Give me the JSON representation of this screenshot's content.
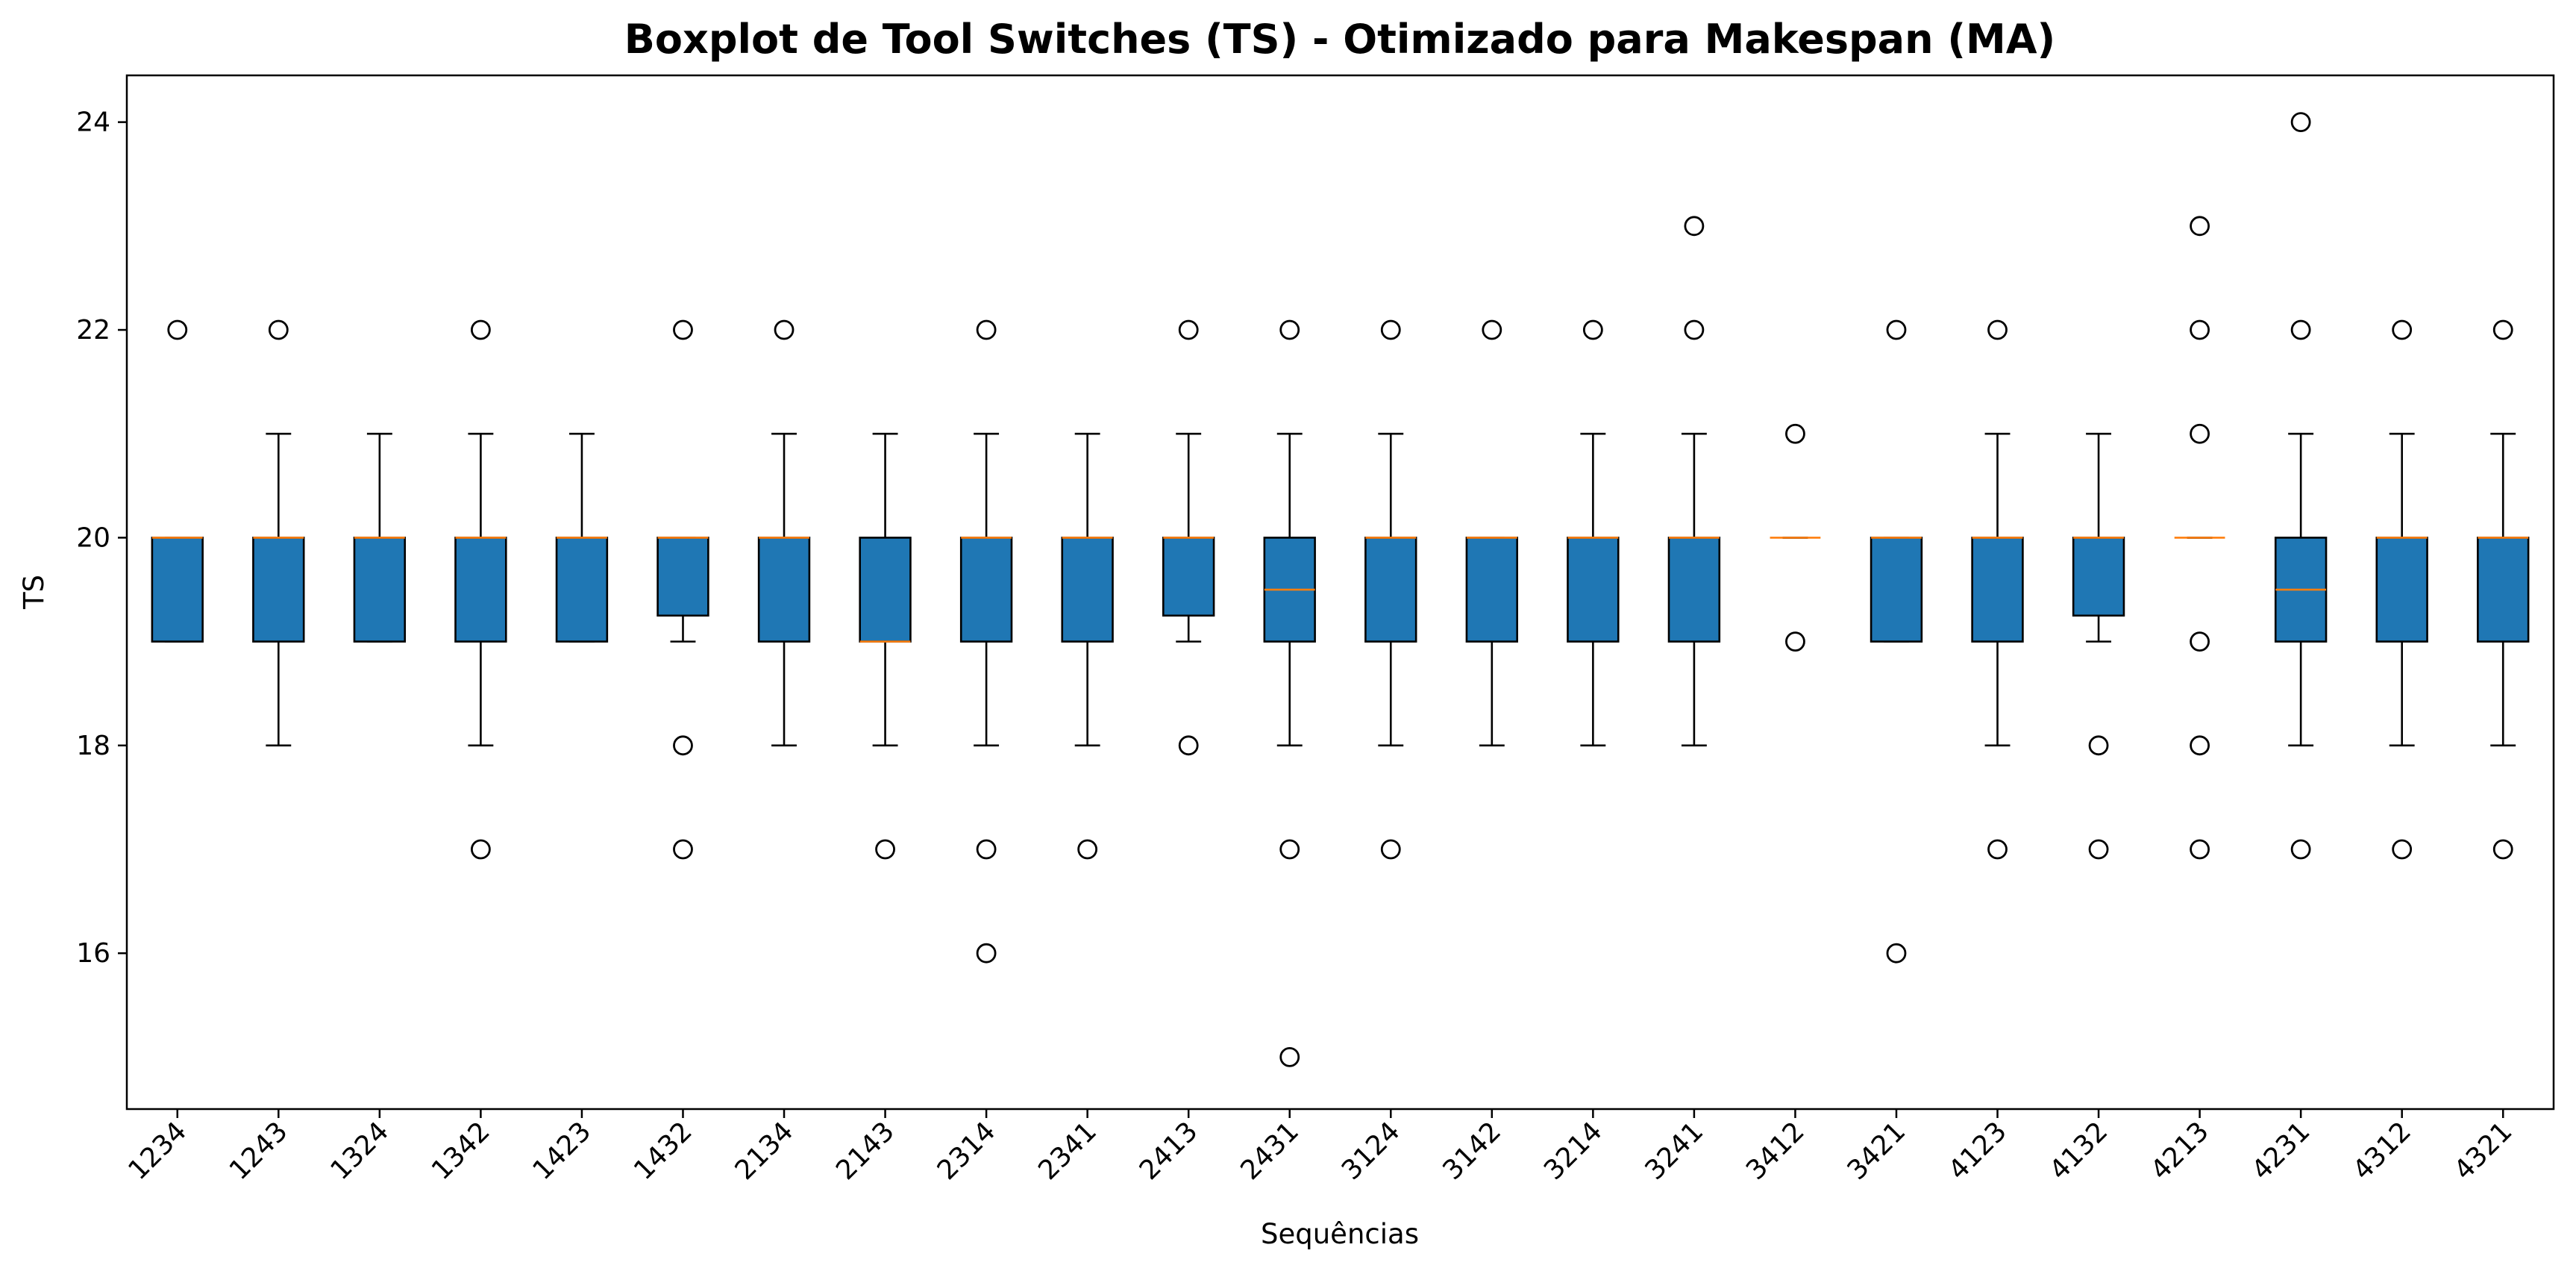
{
  "chart_data": {
    "type": "boxplot",
    "title": "Boxplot de Tool Switches (TS) - Otimizado para Makespan (MA)",
    "xlabel": "Sequências",
    "ylabel": "TS",
    "ylim": [
      14.5,
      24.45
    ],
    "yticks": [
      16,
      18,
      20,
      22,
      24
    ],
    "grid": false,
    "colors": {
      "box_fill": "#1f77b4",
      "median": "#ff7f0e",
      "edge": "#000000"
    },
    "categories": [
      "1234",
      "1243",
      "1324",
      "1342",
      "1423",
      "1432",
      "2134",
      "2143",
      "2314",
      "2341",
      "2413",
      "2431",
      "3124",
      "3142",
      "3214",
      "3241",
      "3412",
      "3421",
      "4123",
      "4132",
      "4213",
      "4231",
      "4312",
      "4321"
    ],
    "boxes": [
      {
        "label": "1234",
        "q1": 19,
        "median": 20,
        "q3": 20,
        "whislo": 19,
        "whishi": 20,
        "fliers": [
          22
        ]
      },
      {
        "label": "1243",
        "q1": 19,
        "median": 20,
        "q3": 20,
        "whislo": 18,
        "whishi": 21,
        "fliers": [
          22
        ]
      },
      {
        "label": "1324",
        "q1": 19,
        "median": 20,
        "q3": 20,
        "whislo": 19,
        "whishi": 21,
        "fliers": []
      },
      {
        "label": "1342",
        "q1": 19,
        "median": 20,
        "q3": 20,
        "whislo": 18,
        "whishi": 21,
        "fliers": [
          22,
          17
        ]
      },
      {
        "label": "1423",
        "q1": 19,
        "median": 20,
        "q3": 20,
        "whislo": 19,
        "whishi": 21,
        "fliers": []
      },
      {
        "label": "1432",
        "q1": 19.25,
        "median": 20,
        "q3": 20,
        "whislo": 19,
        "whishi": 20,
        "fliers": [
          22,
          18,
          17
        ]
      },
      {
        "label": "2134",
        "q1": 19,
        "median": 20,
        "q3": 20,
        "whislo": 18,
        "whishi": 21,
        "fliers": [
          22
        ]
      },
      {
        "label": "2143",
        "q1": 19,
        "median": 19,
        "q3": 20,
        "whislo": 18,
        "whishi": 21,
        "fliers": [
          17
        ]
      },
      {
        "label": "2314",
        "q1": 19,
        "median": 20,
        "q3": 20,
        "whislo": 18,
        "whishi": 21,
        "fliers": [
          22,
          17,
          16
        ]
      },
      {
        "label": "2341",
        "q1": 19,
        "median": 20,
        "q3": 20,
        "whislo": 18,
        "whishi": 21,
        "fliers": [
          17
        ]
      },
      {
        "label": "2413",
        "q1": 19.25,
        "median": 20,
        "q3": 20,
        "whislo": 19,
        "whishi": 21,
        "fliers": [
          22,
          18
        ]
      },
      {
        "label": "2431",
        "q1": 19,
        "median": 19.5,
        "q3": 20,
        "whislo": 18,
        "whishi": 21,
        "fliers": [
          22,
          17,
          15
        ]
      },
      {
        "label": "3124",
        "q1": 19,
        "median": 20,
        "q3": 20,
        "whislo": 18,
        "whishi": 21,
        "fliers": [
          22,
          17
        ]
      },
      {
        "label": "3142",
        "q1": 19,
        "median": 20,
        "q3": 20,
        "whislo": 18,
        "whishi": 20,
        "fliers": [
          22
        ]
      },
      {
        "label": "3214",
        "q1": 19,
        "median": 20,
        "q3": 20,
        "whislo": 18,
        "whishi": 21,
        "fliers": [
          22
        ]
      },
      {
        "label": "3241",
        "q1": 19,
        "median": 20,
        "q3": 20,
        "whislo": 18,
        "whishi": 21,
        "fliers": [
          23,
          22
        ]
      },
      {
        "label": "3412",
        "q1": 20,
        "median": 20,
        "q3": 20,
        "whislo": 20,
        "whishi": 20,
        "fliers": [
          21,
          19
        ]
      },
      {
        "label": "3421",
        "q1": 19,
        "median": 20,
        "q3": 20,
        "whislo": 19,
        "whishi": 20,
        "fliers": [
          22,
          16
        ]
      },
      {
        "label": "4123",
        "q1": 19,
        "median": 20,
        "q3": 20,
        "whislo": 18,
        "whishi": 21,
        "fliers": [
          22,
          17
        ]
      },
      {
        "label": "4132",
        "q1": 19.25,
        "median": 20,
        "q3": 20,
        "whislo": 19,
        "whishi": 21,
        "fliers": [
          18,
          17
        ]
      },
      {
        "label": "4213",
        "q1": 20,
        "median": 20,
        "q3": 20,
        "whislo": 20,
        "whishi": 20,
        "fliers": [
          23,
          22,
          21,
          19,
          18,
          17
        ]
      },
      {
        "label": "4231",
        "q1": 19,
        "median": 19.5,
        "q3": 20,
        "whislo": 18,
        "whishi": 21,
        "fliers": [
          24,
          22,
          17
        ]
      },
      {
        "label": "4312",
        "q1": 19,
        "median": 20,
        "q3": 20,
        "whislo": 18,
        "whishi": 21,
        "fliers": [
          22,
          17
        ]
      },
      {
        "label": "4321",
        "q1": 19,
        "median": 20,
        "q3": 20,
        "whislo": 18,
        "whishi": 21,
        "fliers": [
          22,
          17
        ]
      }
    ]
  }
}
